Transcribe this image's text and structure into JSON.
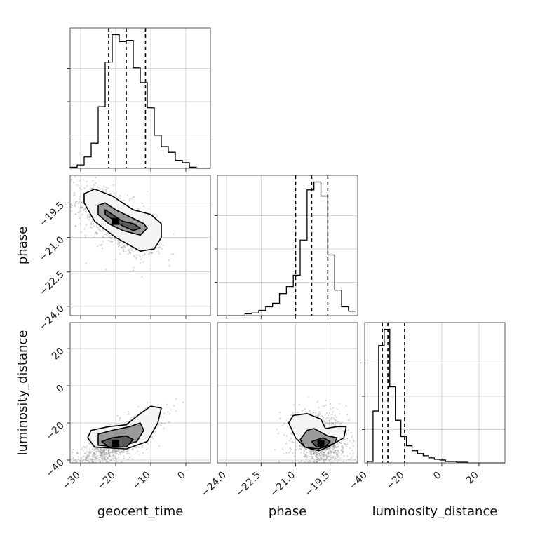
{
  "chart_data": {
    "type": "corner",
    "grid": true,
    "parameters": [
      {
        "name": "geocent_time",
        "range": [
          -33,
          7
        ],
        "ticks": [
          -30,
          -20,
          -10,
          0
        ],
        "quantiles": [
          -22,
          -17,
          -11.5
        ]
      },
      {
        "name": "phase",
        "range": [
          -24.4,
          -18.3
        ],
        "ticks": [
          -24.0,
          -22.5,
          -21.0,
          -19.5
        ],
        "quantiles": [
          -21.0,
          -20.3,
          -19.6
        ]
      },
      {
        "name": "luminosity_distance",
        "range": [
          -41.5,
          34
        ],
        "ticks": [
          -40,
          -20,
          0,
          20
        ],
        "quantiles": [
          -32,
          -29,
          -20
        ]
      }
    ],
    "tick_labels": {
      "geocent_time": [
        "−30",
        "−20",
        "−10",
        "0"
      ],
      "phase": [
        "−24.0",
        "−22.5",
        "−21.0",
        "−19.5"
      ],
      "luminosity_distance": [
        "−40",
        "−20",
        "0",
        "20"
      ]
    },
    "histograms": [
      {
        "parameter": "geocent_time",
        "edges": [
          -33,
          -31,
          -29,
          -27,
          -25,
          -23,
          -21,
          -19,
          -17,
          -15,
          -13,
          -11,
          -9,
          -7,
          -5,
          -3,
          -1,
          1,
          3,
          5,
          7
        ],
        "counts": [
          1,
          3,
          10,
          22,
          54,
          93,
          117,
          111,
          112,
          88,
          75,
          53,
          29,
          19,
          14,
          7,
          5,
          1,
          0,
          0
        ]
      },
      {
        "parameter": "phase",
        "edges": [
          -24.4,
          -24.1,
          -23.8,
          -23.5,
          -23.2,
          -22.9,
          -22.6,
          -22.3,
          -22.0,
          -21.7,
          -21.4,
          -21.1,
          -20.8,
          -20.5,
          -20.2,
          -19.9,
          -19.6,
          -19.3,
          -19.0,
          -18.7,
          -18.4
        ],
        "counts": [
          0,
          0,
          0,
          0,
          2,
          3,
          6,
          10,
          14,
          25,
          33,
          46,
          86,
          143,
          152,
          136,
          69,
          29,
          10,
          5
        ]
      },
      {
        "parameter": "luminosity_distance",
        "edges": [
          -40,
          -37,
          -34,
          -31,
          -28,
          -25,
          -22,
          -19,
          -16,
          -13,
          -10,
          -7,
          -4,
          -1,
          2,
          5,
          8,
          11,
          14,
          17,
          20,
          23,
          26,
          29,
          32,
          35
        ],
        "counts": [
          2,
          73,
          165,
          188,
          107,
          60,
          37,
          24,
          17,
          13,
          10,
          7,
          5,
          4,
          2,
          2,
          1,
          1,
          0,
          0,
          0,
          0,
          0,
          0,
          0
        ]
      }
    ],
    "pairs": [
      {
        "x": "geocent_time",
        "y": "phase",
        "mode": [
          -20,
          -20.3
        ],
        "spread": [
          5.5,
          0.75
        ],
        "correlation": -0.6,
        "contours": [
          [
            [
              -23,
              -19.8
            ],
            [
              -22,
              -19.9
            ],
            [
              -20,
              -20.1
            ],
            [
              -18,
              -20.3
            ],
            [
              -15,
              -20.4
            ],
            [
              -13,
              -20.6
            ],
            [
              -15,
              -20.7
            ],
            [
              -18,
              -20.5
            ],
            [
              -21,
              -20.2
            ],
            [
              -23,
              -20.0
            ]
          ],
          [
            [
              -25,
              -19.6
            ],
            [
              -23,
              -19.5
            ],
            [
              -20,
              -19.8
            ],
            [
              -16,
              -20.1
            ],
            [
              -12,
              -20.4
            ],
            [
              -11,
              -20.6
            ],
            [
              -13,
              -20.9
            ],
            [
              -18,
              -20.7
            ],
            [
              -22,
              -20.4
            ],
            [
              -25,
              -20.0
            ]
          ],
          [
            [
              -29,
              -19.1
            ],
            [
              -26,
              -18.9
            ],
            [
              -21,
              -19.2
            ],
            [
              -15,
              -19.8
            ],
            [
              -10,
              -20.0
            ],
            [
              -7,
              -20.4
            ],
            [
              -7,
              -21.0
            ],
            [
              -9,
              -21.5
            ],
            [
              -13,
              -21.6
            ],
            [
              -20,
              -21.0
            ],
            [
              -26,
              -20.3
            ],
            [
              -29,
              -19.5
            ]
          ]
        ]
      },
      {
        "x": "geocent_time",
        "y": "luminosity_distance",
        "mode": [
          -20,
          -31
        ],
        "spread": [
          6,
          8
        ],
        "correlation": 0.78,
        "contours": [
          [
            [
              -24,
              -30
            ],
            [
              -21,
              -28
            ],
            [
              -17,
              -27
            ],
            [
              -15,
              -29
            ],
            [
              -17,
              -33
            ],
            [
              -22,
              -33
            ]
          ],
          [
            [
              -25,
              -26
            ],
            [
              -21,
              -24
            ],
            [
              -16,
              -22
            ],
            [
              -13,
              -20
            ],
            [
              -12,
              -24
            ],
            [
              -14,
              -30
            ],
            [
              -19,
              -33
            ],
            [
              -25,
              -32
            ]
          ],
          [
            [
              -27,
              -24
            ],
            [
              -22,
              -22
            ],
            [
              -17,
              -21
            ],
            [
              -13,
              -15
            ],
            [
              -10,
              -11
            ],
            [
              -7,
              -12
            ],
            [
              -8,
              -20
            ],
            [
              -11,
              -30
            ],
            [
              -17,
              -34
            ],
            [
              -26,
              -33
            ],
            [
              -28,
              -28
            ]
          ]
        ]
      },
      {
        "x": "phase",
        "y": "luminosity_distance",
        "mode": [
          -19.9,
          -31
        ],
        "spread": [
          0.6,
          8
        ],
        "correlation": -0.15,
        "contours": [
          [
            [
              -20.3,
              -30
            ],
            [
              -19.8,
              -28
            ],
            [
              -19.5,
              -30
            ],
            [
              -19.7,
              -33
            ],
            [
              -20.1,
              -33
            ]
          ],
          [
            [
              -20.8,
              -29
            ],
            [
              -20.5,
              -24
            ],
            [
              -20.2,
              -23
            ],
            [
              -19.6,
              -27
            ],
            [
              -19.2,
              -28
            ],
            [
              -19.3,
              -31
            ],
            [
              -20.0,
              -34
            ],
            [
              -20.6,
              -33
            ]
          ],
          [
            [
              -21.1,
              -16
            ],
            [
              -20.5,
              -15
            ],
            [
              -19.9,
              -18
            ],
            [
              -19.7,
              -23
            ],
            [
              -19.2,
              -22
            ],
            [
              -18.8,
              -22
            ],
            [
              -18.9,
              -28
            ],
            [
              -19.6,
              -33
            ],
            [
              -20.0,
              -35
            ],
            [
              -20.6,
              -33
            ],
            [
              -21.0,
              -28
            ],
            [
              -21.3,
              -20
            ]
          ]
        ]
      }
    ]
  }
}
